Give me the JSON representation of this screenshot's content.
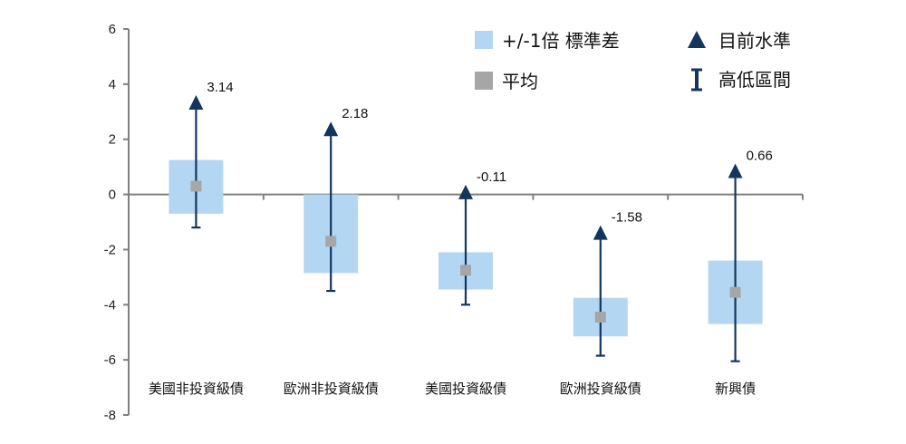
{
  "chart_data": {
    "type": "range",
    "categories": [
      "美國非投資級債",
      "歐洲非投資級債",
      "美國投資級債",
      "歐洲投資級債",
      "新興債"
    ],
    "current": [
      3.14,
      2.18,
      -0.11,
      -1.58,
      0.66
    ],
    "current_labels": [
      "3.14",
      "2.18",
      "-0.11",
      "-1.58",
      "0.66"
    ],
    "mean": [
      0.3,
      -1.7,
      -2.75,
      -4.45,
      -3.55
    ],
    "std_band": [
      [
        -0.7,
        1.25
      ],
      [
        -2.85,
        0
      ],
      [
        -3.45,
        -2.1
      ],
      [
        -5.15,
        -3.75
      ],
      [
        -4.7,
        -2.4
      ]
    ],
    "range": [
      [
        -1.2,
        3.0
      ],
      [
        -3.5,
        2.0
      ],
      [
        -4.0,
        -0.3
      ],
      [
        -5.85,
        -1.8
      ],
      [
        -6.05,
        0.5
      ]
    ],
    "ylim": [
      -8,
      6
    ],
    "yticks": [
      6,
      4,
      2,
      0,
      -2,
      -4,
      -6,
      -8
    ],
    "legend": {
      "std": "+/-1倍 標準差",
      "current": "目前水準",
      "mean": "平均",
      "range": "高低區間"
    },
    "colors": {
      "band": "#b3d7f2",
      "mean": "#a6a6a6",
      "marker": "#12365e",
      "axis": "#7f7f7f"
    }
  }
}
